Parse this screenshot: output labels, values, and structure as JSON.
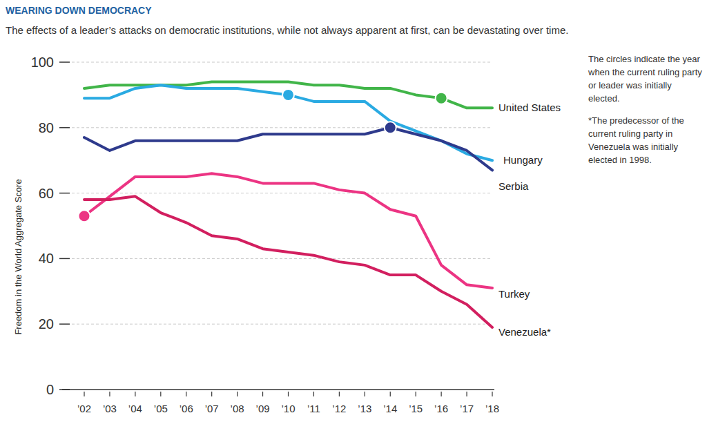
{
  "chart_data": {
    "type": "line",
    "title": "WEARING DOWN DEMOCRACY",
    "subtitle": "The effects of a leader’s attacks on democratic institutions, while not always apparent at first, can be devastating over time.",
    "y_label": "Freedom in the World Aggregate Score",
    "annotations": [
      "The circles indicate the year when the current ruling party or leader was initially elected.",
      "*The predecessor of the current ruling party in Venezuela was initially elected in 1998."
    ],
    "categories": [
      "’02",
      "’03",
      "’04",
      "’05",
      "’06",
      "’07",
      "’08",
      "’09",
      "’10",
      "’11",
      "’12",
      "’13",
      "’14",
      "’15",
      "’16",
      "’17",
      "’18"
    ],
    "series": [
      {
        "name": "United States",
        "color": "#41b549",
        "highlight": "’16",
        "values": [
          92,
          93,
          93,
          93,
          93,
          94,
          94,
          94,
          94,
          93,
          93,
          92,
          92,
          90,
          89,
          86,
          86
        ]
      },
      {
        "name": "Hungary",
        "color": "#2aaae2",
        "highlight": "’10",
        "values": [
          89,
          89,
          92,
          93,
          92,
          92,
          92,
          91,
          90,
          88,
          88,
          88,
          82,
          79,
          76,
          72,
          70
        ]
      },
      {
        "name": "Serbia",
        "color": "#2e3a8c",
        "highlight": "’14",
        "values": [
          77,
          73,
          76,
          76,
          76,
          76,
          76,
          78,
          78,
          78,
          78,
          78,
          80,
          78,
          76,
          73,
          67
        ]
      },
      {
        "name": "Turkey",
        "color": "#ec3483",
        "highlight": "’02",
        "values": [
          53,
          59,
          65,
          65,
          65,
          66,
          65,
          63,
          63,
          63,
          61,
          60,
          55,
          53,
          38,
          32,
          31
        ]
      },
      {
        "name": "Venezuela*",
        "color": "#d21f5f",
        "values": [
          58,
          58,
          59,
          54,
          51,
          47,
          46,
          43,
          42,
          41,
          39,
          38,
          35,
          35,
          30,
          26,
          19
        ]
      }
    ],
    "ylim": [
      0,
      100
    ],
    "yticks": [
      0,
      20,
      40,
      60,
      80,
      100
    ],
    "grid": true,
    "marker": "circle"
  }
}
